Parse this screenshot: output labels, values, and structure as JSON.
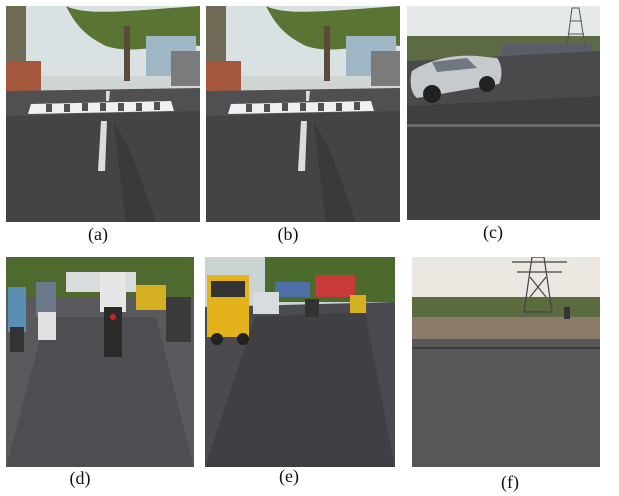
{
  "figure": {
    "panels": [
      {
        "id": "a",
        "caption": "(a)"
      },
      {
        "id": "b",
        "caption": "(b)"
      },
      {
        "id": "c",
        "caption": "(c)"
      },
      {
        "id": "d",
        "caption": "(d)"
      },
      {
        "id": "e",
        "caption": "(e)"
      },
      {
        "id": "f",
        "caption": "(f)"
      }
    ]
  },
  "palette": {
    "sky": "#dfe6e8",
    "asphalt": "#4b4b4e",
    "asphalt_dark": "#333336",
    "road_marking": "#e8e8e8",
    "foliage": "#4f6a2e",
    "auto_yellow": "#e4b21a",
    "car_silver": "#c9cdd0",
    "dusk_sky": "#e9e3dc"
  }
}
